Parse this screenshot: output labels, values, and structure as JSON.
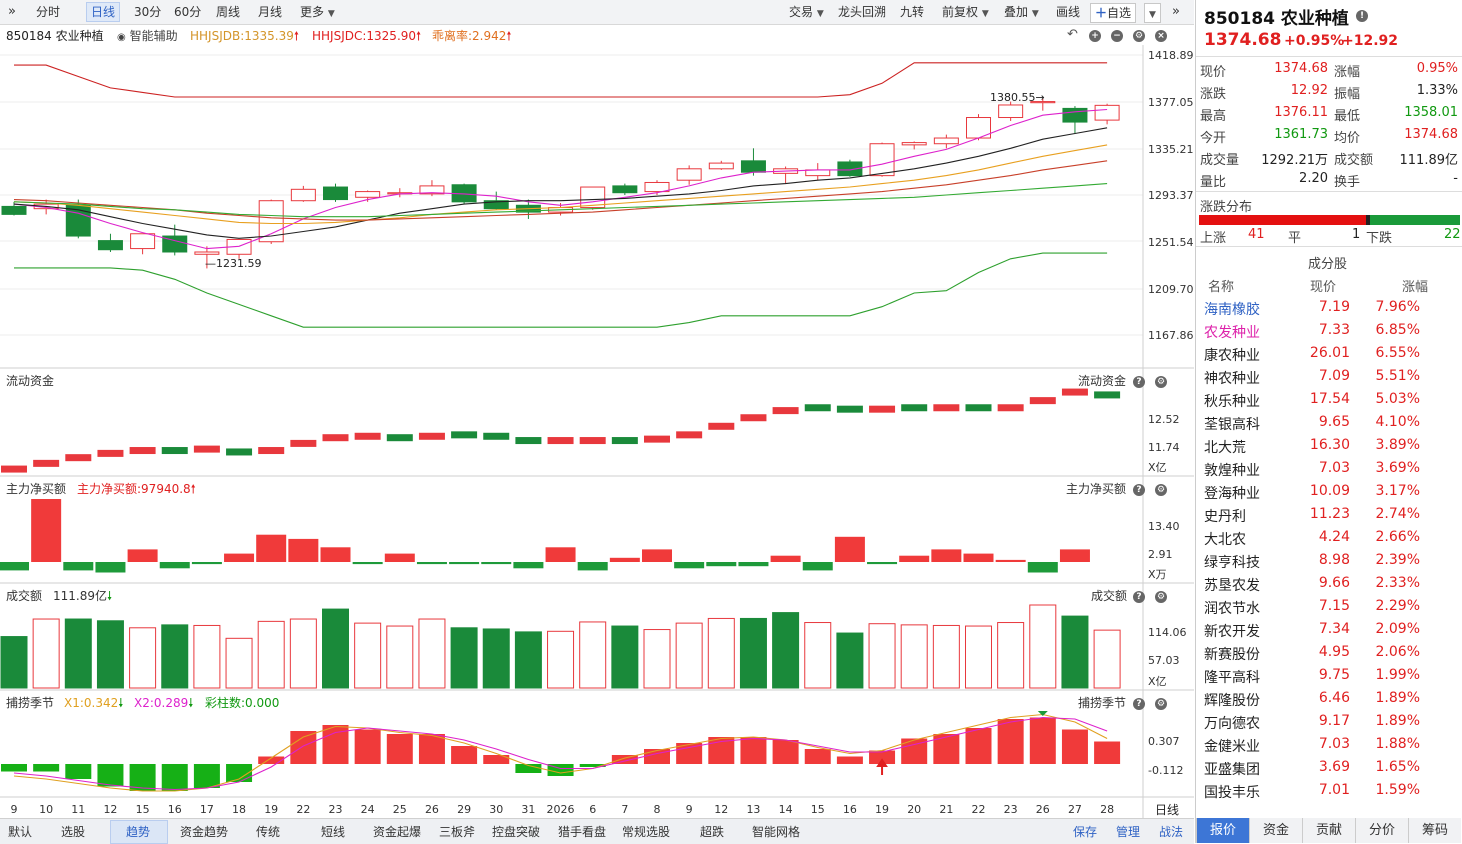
{
  "toolbar": {
    "periods": [
      "分时",
      "日线",
      "30分",
      "60分",
      "周线",
      "月线",
      "更多"
    ],
    "active_period": "日线",
    "right_items": [
      "交易",
      "龙头回溯",
      "九转",
      "前复权",
      "叠加",
      "画线",
      "自选"
    ]
  },
  "info": {
    "code_name": "850184 农业种植",
    "assist": "智能辅助",
    "hhjsjdb": "HHJSJDB:1335.39",
    "hhjsjdc": "HHJSJDC:1325.90",
    "ratio": "乖离率:2.942"
  },
  "main_axis": [
    "1418.89",
    "1377.05",
    "1335.21",
    "1293.37",
    "1251.54",
    "1209.70",
    "1167.86"
  ],
  "annotations": {
    "high": "1380.55",
    "low": "1231.59"
  },
  "panels": {
    "flow": {
      "title": "流动资金",
      "right_title": "流动资金",
      "axis": [
        "12.52",
        "11.74"
      ],
      "unit": "X亿"
    },
    "main_net": {
      "title": "主力净买额",
      "value": "主力净买额:97940.8",
      "right_title": "主力净买额",
      "axis": [
        "13.40",
        "2.91"
      ],
      "unit": "X万"
    },
    "volume": {
      "title": "成交额",
      "value": "111.89亿",
      "right_title": "成交额",
      "axis": [
        "114.06",
        "57.03"
      ],
      "unit": "X亿"
    },
    "season": {
      "title": "捕捞季节",
      "x1": "X1:0.342",
      "x2": "X2:0.289",
      "bars": "彩柱数:0.000",
      "right_title": "捕捞季节",
      "axis": [
        "0.307",
        "-0.112"
      ]
    }
  },
  "dates": [
    "9",
    "10",
    "11",
    "12",
    "15",
    "16",
    "17",
    "18",
    "19",
    "22",
    "23",
    "24",
    "25",
    "26",
    "29",
    "30",
    "31",
    "2026",
    "6",
    "7",
    "8",
    "9",
    "12",
    "13",
    "14",
    "15",
    "16",
    "19",
    "20",
    "21",
    "22",
    "23",
    "26",
    "27",
    "28"
  ],
  "date_period_label": "日线",
  "bottom_tabs": [
    "默认",
    "选股",
    "趋势",
    "资金趋势",
    "传统",
    "短线",
    "资金起爆",
    "三板斧",
    "控盘突破",
    "猎手看盘",
    "常规选股",
    "超跌",
    "智能网格"
  ],
  "bottom_active": "趋势",
  "bottom_right": [
    "保存",
    "管理",
    "战法"
  ],
  "quote": {
    "code_name": "850184 农业种植",
    "price": "1374.68",
    "pct": "+0.95%",
    "chg": "+12.92",
    "rows": [
      {
        "l1": "现价",
        "v1": "1374.68",
        "c1": "red",
        "l2": "涨幅",
        "v2": "0.95%",
        "c2": "red"
      },
      {
        "l1": "涨跌",
        "v1": "12.92",
        "c1": "red",
        "l2": "振幅",
        "v2": "1.33%",
        "c2": "dark"
      },
      {
        "l1": "最高",
        "v1": "1376.11",
        "c1": "red",
        "l2": "最低",
        "v2": "1358.01",
        "c2": "green"
      },
      {
        "l1": "今开",
        "v1": "1361.73",
        "c1": "green",
        "l2": "均价",
        "v2": "1374.68",
        "c2": "red"
      },
      {
        "l1": "成交量",
        "v1": "1292.21万",
        "c1": "dark",
        "l2": "成交额",
        "v2": "111.89亿",
        "c2": "dark"
      },
      {
        "l1": "量比",
        "v1": "2.20",
        "c1": "dark",
        "l2": "换手",
        "v2": "-",
        "c2": "dark"
      }
    ],
    "dist_title": "涨跌分布",
    "up_label": "上涨",
    "up": "41",
    "flat_label": "平",
    "flat": "1",
    "down_label": "下跌",
    "down": "22",
    "comp_title": "成分股",
    "col_name": "名称",
    "col_price": "现价",
    "col_pct": "涨幅",
    "stocks": [
      {
        "name": "海南橡胶",
        "price": "7.19",
        "pct": "7.96%",
        "color": "blue"
      },
      {
        "name": "农发种业",
        "price": "7.33",
        "pct": "6.85%",
        "color": "magenta"
      },
      {
        "name": "康农种业",
        "price": "26.01",
        "pct": "6.55%",
        "color": "dark"
      },
      {
        "name": "神农种业",
        "price": "7.09",
        "pct": "5.51%",
        "color": "dark"
      },
      {
        "name": "秋乐种业",
        "price": "17.54",
        "pct": "5.03%",
        "color": "dark"
      },
      {
        "name": "荃银高科",
        "price": "9.65",
        "pct": "4.10%",
        "color": "dark"
      },
      {
        "name": "北大荒",
        "price": "16.30",
        "pct": "3.89%",
        "color": "dark"
      },
      {
        "name": "敦煌种业",
        "price": "7.03",
        "pct": "3.69%",
        "color": "dark"
      },
      {
        "name": "登海种业",
        "price": "10.09",
        "pct": "3.17%",
        "color": "dark"
      },
      {
        "name": "史丹利",
        "price": "11.23",
        "pct": "2.74%",
        "color": "dark"
      },
      {
        "name": "大北农",
        "price": "4.24",
        "pct": "2.66%",
        "color": "dark"
      },
      {
        "name": "绿亨科技",
        "price": "8.98",
        "pct": "2.39%",
        "color": "dark"
      },
      {
        "name": "苏垦农发",
        "price": "9.66",
        "pct": "2.33%",
        "color": "dark"
      },
      {
        "name": "润农节水",
        "price": "7.15",
        "pct": "2.29%",
        "color": "dark"
      },
      {
        "name": "新农开发",
        "price": "7.34",
        "pct": "2.09%",
        "color": "dark"
      },
      {
        "name": "新赛股份",
        "price": "4.95",
        "pct": "2.06%",
        "color": "dark"
      },
      {
        "name": "隆平高科",
        "price": "9.75",
        "pct": "1.99%",
        "color": "dark"
      },
      {
        "name": "辉隆股份",
        "price": "6.46",
        "pct": "1.89%",
        "color": "dark"
      },
      {
        "name": "万向德农",
        "price": "9.17",
        "pct": "1.89%",
        "color": "dark"
      },
      {
        "name": "金健米业",
        "price": "7.03",
        "pct": "1.88%",
        "color": "dark"
      },
      {
        "name": "亚盛集团",
        "price": "3.69",
        "pct": "1.65%",
        "color": "dark"
      },
      {
        "name": "国投丰乐",
        "price": "7.01",
        "pct": "1.59%",
        "color": "dark"
      }
    ],
    "tabs": [
      "报价",
      "资金",
      "贡献",
      "分价",
      "筹码"
    ],
    "active_tab": "报价"
  },
  "chart_data": {
    "type": "candlestick",
    "title": "850184 农业种植",
    "x": [
      "9",
      "10",
      "11",
      "12",
      "15",
      "16",
      "17",
      "18",
      "19",
      "22",
      "23",
      "24",
      "25",
      "26",
      "29",
      "30",
      "31",
      "2026",
      "6",
      "7",
      "8",
      "9",
      "12",
      "13",
      "14",
      "15",
      "16",
      "19",
      "20",
      "21",
      "22",
      "23",
      "26",
      "27",
      "28"
    ],
    "candles": [
      {
        "o": 1286,
        "h": 1290,
        "l": 1278,
        "c": 1279,
        "up": false
      },
      {
        "o": 1284,
        "h": 1292,
        "l": 1279,
        "c": 1288,
        "up": true
      },
      {
        "o": 1287,
        "h": 1292,
        "l": 1258,
        "c": 1260,
        "up": false
      },
      {
        "o": 1256,
        "h": 1262,
        "l": 1246,
        "c": 1248,
        "up": false
      },
      {
        "o": 1249,
        "h": 1262,
        "l": 1244,
        "c": 1262,
        "up": true
      },
      {
        "o": 1260,
        "h": 1270,
        "l": 1243,
        "c": 1246,
        "up": false
      },
      {
        "o": 1244,
        "h": 1251,
        "l": 1231.59,
        "c": 1246,
        "up": true
      },
      {
        "o": 1244,
        "h": 1257,
        "l": 1240,
        "c": 1257,
        "up": true
      },
      {
        "o": 1255,
        "h": 1292,
        "l": 1253,
        "c": 1291,
        "up": true
      },
      {
        "o": 1291,
        "h": 1304,
        "l": 1290,
        "c": 1301,
        "up": true
      },
      {
        "o": 1303,
        "h": 1306,
        "l": 1290,
        "c": 1292,
        "up": false
      },
      {
        "o": 1294,
        "h": 1300,
        "l": 1290,
        "c": 1299,
        "up": true
      },
      {
        "o": 1297,
        "h": 1302,
        "l": 1294,
        "c": 1298,
        "up": true
      },
      {
        "o": 1297,
        "h": 1309,
        "l": 1295,
        "c": 1304,
        "up": true
      },
      {
        "o": 1305,
        "h": 1306,
        "l": 1288,
        "c": 1290,
        "up": false
      },
      {
        "o": 1291,
        "h": 1299,
        "l": 1283,
        "c": 1284,
        "up": false
      },
      {
        "o": 1287,
        "h": 1292,
        "l": 1275,
        "c": 1281,
        "up": false
      },
      {
        "o": 1281,
        "h": 1289,
        "l": 1278,
        "c": 1285,
        "up": true
      },
      {
        "o": 1285,
        "h": 1303,
        "l": 1283,
        "c": 1303,
        "up": true
      },
      {
        "o": 1304,
        "h": 1306,
        "l": 1296,
        "c": 1298,
        "up": false
      },
      {
        "o": 1299,
        "h": 1309,
        "l": 1296,
        "c": 1307,
        "up": true
      },
      {
        "o": 1309,
        "h": 1322,
        "l": 1305,
        "c": 1319,
        "up": true
      },
      {
        "o": 1319,
        "h": 1326,
        "l": 1318,
        "c": 1324,
        "up": true
      },
      {
        "o": 1326,
        "h": 1337,
        "l": 1313,
        "c": 1316,
        "up": false
      },
      {
        "o": 1315,
        "h": 1321,
        "l": 1306,
        "c": 1319,
        "up": true
      },
      {
        "o": 1313,
        "h": 1324,
        "l": 1309,
        "c": 1318,
        "up": true
      },
      {
        "o": 1325,
        "h": 1327,
        "l": 1312,
        "c": 1313,
        "up": false
      },
      {
        "o": 1313,
        "h": 1342,
        "l": 1312,
        "c": 1341,
        "up": true
      },
      {
        "o": 1340,
        "h": 1343,
        "l": 1336,
        "c": 1342,
        "up": true
      },
      {
        "o": 1341,
        "h": 1349,
        "l": 1337,
        "c": 1346,
        "up": true
      },
      {
        "o": 1346,
        "h": 1367,
        "l": 1344,
        "c": 1364,
        "up": true
      },
      {
        "o": 1364,
        "h": 1378,
        "l": 1361,
        "c": 1375,
        "up": true
      },
      {
        "o": 1377,
        "h": 1380.55,
        "l": 1370,
        "c": 1378,
        "up": true
      },
      {
        "o": 1372,
        "h": 1374,
        "l": 1350,
        "c": 1360,
        "up": false
      },
      {
        "o": 1361.73,
        "h": 1376.11,
        "l": 1358.01,
        "c": 1374.68,
        "up": true
      }
    ],
    "series": [
      {
        "values": [
          1288,
          1285,
          1280,
          1271,
          1263,
          1256,
          1249,
          1251,
          1262,
          1275,
          1285,
          1292,
          1297,
          1298,
          1297,
          1295,
          1290,
          1287,
          1290,
          1294,
          1298,
          1304,
          1311,
          1316,
          1317,
          1318,
          1318,
          1323,
          1330,
          1336,
          1346,
          1357,
          1366,
          1369,
          1371
        ],
        "color": "#dd22cc"
      },
      {
        "values": [
          1288,
          1286,
          1283,
          1277,
          1271,
          1266,
          1261,
          1258,
          1260,
          1264,
          1268,
          1274,
          1280,
          1284,
          1288,
          1290,
          1291,
          1291,
          1292,
          1293,
          1295,
          1297,
          1300,
          1304,
          1306,
          1309,
          1311,
          1315,
          1319,
          1324,
          1330,
          1337,
          1345,
          1350,
          1355
        ],
        "color": "#222222"
      },
      {
        "values": [
          1290,
          1289,
          1287,
          1284,
          1281,
          1278,
          1275,
          1272,
          1271,
          1271,
          1272,
          1274,
          1276,
          1279,
          1281,
          1283,
          1284,
          1285,
          1287,
          1289,
          1291,
          1293,
          1295,
          1297,
          1299,
          1301,
          1303,
          1306,
          1309,
          1313,
          1318,
          1324,
          1330,
          1335,
          1340
        ],
        "color": "#e8a020"
      },
      {
        "values": [
          1292,
          1291,
          1289,
          1287,
          1285,
          1283,
          1280,
          1278,
          1276,
          1275,
          1274,
          1274,
          1275,
          1276,
          1277,
          1278,
          1279,
          1280,
          1281,
          1283,
          1285,
          1287,
          1289,
          1291,
          1293,
          1295,
          1297,
          1299,
          1302,
          1305,
          1309,
          1313,
          1318,
          1322,
          1326
        ],
        "color": "#c8402a"
      },
      {
        "values": [
          1290,
          1289,
          1288,
          1286,
          1284,
          1283,
          1281,
          1279,
          1278,
          1277,
          1277,
          1277,
          1278,
          1279,
          1280,
          1281,
          1282,
          1283,
          1284,
          1285,
          1286,
          1287,
          1288,
          1289,
          1290,
          1291,
          1292,
          1293,
          1294,
          1296,
          1298,
          1300,
          1302,
          1304,
          1306
        ],
        "color": "#33aa33"
      },
      {
        "values": [
          1410,
          1410,
          1400,
          1390,
          1386,
          1382,
          1382,
          1382,
          1382,
          1382,
          1382,
          1382,
          1382,
          1382,
          1382,
          1382,
          1382,
          1382,
          1382,
          1382,
          1382,
          1382,
          1382,
          1382,
          1382,
          1382,
          1384,
          1394,
          1412,
          1412,
          1412,
          1412,
          1412,
          1412,
          1412
        ],
        "color": "#cc2222"
      },
      {
        "values": [
          1232,
          1232,
          1232,
          1232,
          1230,
          1222,
          1210,
          1200,
          1190,
          1180,
          1180,
          1180,
          1180,
          1180,
          1180,
          1180,
          1180,
          1180,
          1180,
          1180,
          1180,
          1184,
          1190,
          1190,
          1190,
          1190,
          1190,
          1198,
          1210,
          1212,
          1228,
          1240,
          1245,
          1245,
          1245
        ],
        "color": "#2ea02e"
      }
    ],
    "flow": [
      11.62,
      11.7,
      11.78,
      11.84,
      11.88,
      11.88,
      11.9,
      11.86,
      11.88,
      11.98,
      12.06,
      12.08,
      12.06,
      12.08,
      12.1,
      12.08,
      12.02,
      12.02,
      12.02,
      12.02,
      12.04,
      12.1,
      12.22,
      12.34,
      12.44,
      12.48,
      12.46,
      12.46,
      12.48,
      12.48,
      12.48,
      12.48,
      12.58,
      12.7,
      12.66
    ],
    "flow_up": [
      true,
      true,
      true,
      true,
      true,
      false,
      true,
      false,
      true,
      true,
      true,
      true,
      false,
      true,
      false,
      false,
      false,
      true,
      true,
      false,
      true,
      true,
      true,
      true,
      true,
      false,
      false,
      true,
      false,
      true,
      false,
      true,
      true,
      true,
      false
    ],
    "main_net": [
      -4,
      30,
      -4,
      -5,
      6,
      -3,
      -1,
      4,
      13,
      11,
      7,
      -1,
      4,
      -1,
      -1,
      -1,
      -3,
      7,
      -4,
      2,
      6,
      -3,
      -2,
      -2,
      3,
      -4,
      12,
      -1,
      3,
      6,
      4,
      1,
      -5,
      6,
      0
    ],
    "volume": [
      88,
      118,
      118,
      115,
      103,
      108,
      107,
      85,
      114,
      118,
      135,
      111,
      106,
      118,
      103,
      101,
      96,
      97,
      113,
      106,
      100,
      111,
      119,
      119,
      129,
      112,
      94,
      110,
      108,
      107,
      106,
      112,
      142,
      123,
      99
    ],
    "volume_up": [
      false,
      true,
      false,
      false,
      true,
      false,
      true,
      true,
      true,
      true,
      false,
      true,
      true,
      true,
      false,
      false,
      false,
      true,
      true,
      false,
      true,
      true,
      true,
      false,
      false,
      true,
      false,
      true,
      true,
      true,
      true,
      true,
      true,
      false,
      true
    ],
    "season": [
      -0.05,
      -0.05,
      -0.1,
      -0.15,
      -0.18,
      -0.18,
      -0.16,
      -0.12,
      0.05,
      0.22,
      0.26,
      0.23,
      0.2,
      0.2,
      0.12,
      0.06,
      -0.06,
      -0.08,
      -0.02,
      0.06,
      0.1,
      0.14,
      0.18,
      0.18,
      0.16,
      0.1,
      0.05,
      0.09,
      0.17,
      0.2,
      0.24,
      0.3,
      0.31,
      0.23,
      0.15
    ],
    "season_x1": [
      -0.08,
      -0.1,
      -0.13,
      -0.16,
      -0.18,
      -0.18,
      -0.16,
      -0.1,
      0.04,
      0.18,
      0.25,
      0.24,
      0.21,
      0.19,
      0.14,
      0.07,
      -0.01,
      -0.06,
      -0.03,
      0.04,
      0.09,
      0.13,
      0.17,
      0.18,
      0.16,
      0.11,
      0.07,
      0.09,
      0.16,
      0.21,
      0.26,
      0.31,
      0.33,
      0.28,
      0.17
    ],
    "season_x2": [
      -0.06,
      -0.08,
      -0.11,
      -0.14,
      -0.16,
      -0.17,
      -0.16,
      -0.12,
      -0.02,
      0.12,
      0.21,
      0.24,
      0.22,
      0.2,
      0.16,
      0.1,
      0.03,
      -0.03,
      -0.03,
      0.02,
      0.07,
      0.11,
      0.15,
      0.17,
      0.16,
      0.12,
      0.08,
      0.08,
      0.13,
      0.18,
      0.23,
      0.28,
      0.31,
      0.3,
      0.22
    ],
    "ylim_main": [
      1160,
      1425
    ]
  }
}
